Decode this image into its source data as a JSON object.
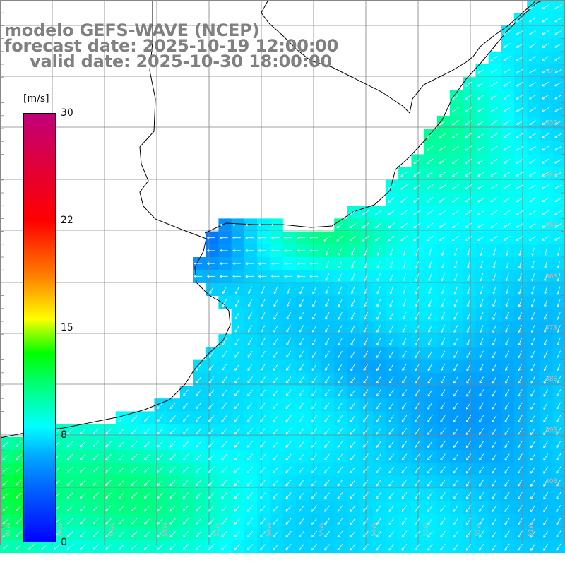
{
  "title": {
    "line1": "modelo GEFS-WAVE (NCEP)",
    "line2": "forecast date: 2025-10-19 12:00:00",
    "line3": "valid date: 2025-10-30 18:00:00"
  },
  "colorbar": {
    "unit": "[m/s]",
    "ticks": [
      "30",
      "22",
      "15",
      "8",
      "0"
    ],
    "tick_values": [
      30,
      22,
      15,
      8,
      0
    ],
    "min": 0,
    "max": 30,
    "colors": [
      "#0000ff",
      "#00a8ff",
      "#00ffff",
      "#00ff00",
      "#ffff00",
      "#ff8000",
      "#ff0000",
      "#c0007a"
    ]
  },
  "map": {
    "lon_labels": [
      "61W",
      "60W",
      "59W",
      "58W",
      "57W",
      "56W",
      "55W",
      "54W",
      "53W",
      "52W",
      "51W"
    ],
    "lat_labels": [
      "32S",
      "33S",
      "34S",
      "35S",
      "36S",
      "37S",
      "38S",
      "39S",
      "40S"
    ],
    "land_color": "#ffffff",
    "grid_color": "#808080",
    "coast_color": "#000000",
    "arrow_color": "#ffffff"
  }
}
